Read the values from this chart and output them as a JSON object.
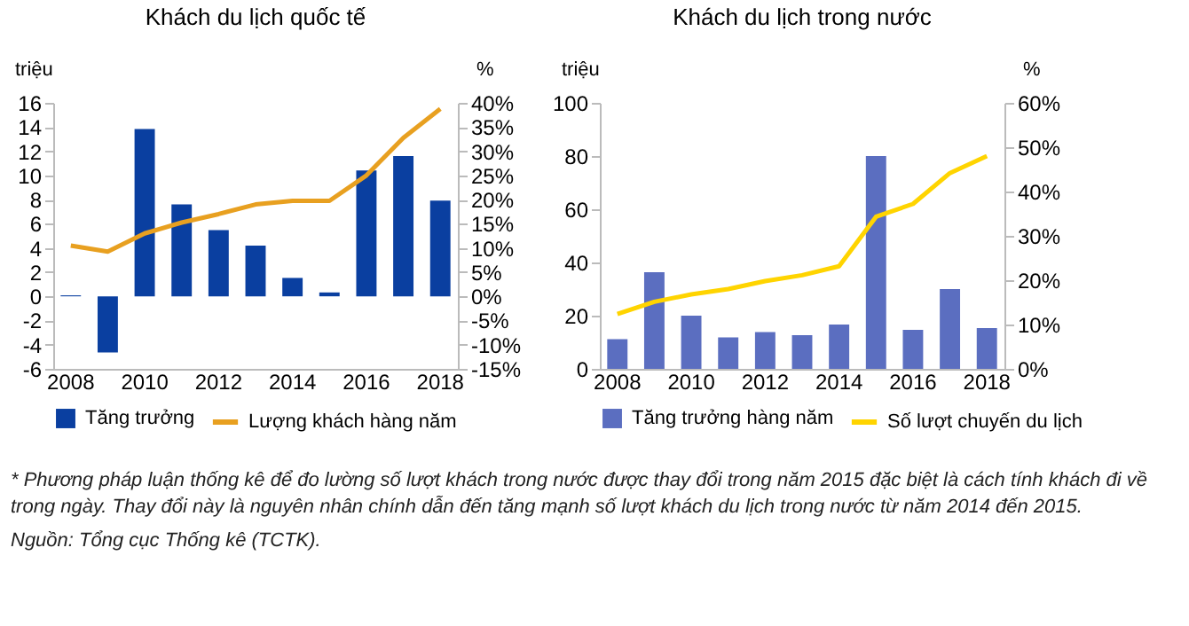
{
  "chart_data": [
    {
      "type": "bar",
      "title": "Khách du lịch quốc tế",
      "ylabel": "triệu",
      "y2label": "%",
      "categories": [
        "2008",
        null,
        "2010",
        null,
        "2012",
        null,
        "2014",
        null,
        "2016",
        null,
        "2018"
      ],
      "series": [
        {
          "name": "Tăng trưởng",
          "type": "bar",
          "axis": "y2",
          "color": "#0a3fa0",
          "values": [
            0.2,
            -11.6,
            34.6,
            19.0,
            13.7,
            10.5,
            3.8,
            0.8,
            26.0,
            29.0,
            19.8
          ]
        },
        {
          "name": "Lượng khách hàng năm",
          "type": "line",
          "axis": "y",
          "color": "#e8a020",
          "values": [
            4.2,
            3.7,
            5.2,
            6.1,
            6.8,
            7.6,
            7.9,
            7.9,
            10.0,
            13.1,
            15.5
          ]
        }
      ],
      "ylim": [
        -6,
        16
      ],
      "yticks": [
        -6,
        -4,
        -2,
        0,
        2,
        4,
        6,
        8,
        10,
        12,
        14,
        16
      ],
      "y2lim": [
        -15,
        40
      ],
      "y2ticks": [
        {
          "value": -15,
          "label": "-15%"
        },
        {
          "value": -10,
          "label": "-10%"
        },
        {
          "value": -5,
          "label": "-5%"
        },
        {
          "value": 0,
          "label": "0%"
        },
        {
          "value": 5,
          "label": "5%"
        },
        {
          "value": 10,
          "label": "10%"
        },
        {
          "value": 15,
          "label": "15%"
        },
        {
          "value": 20,
          "label": "20%"
        },
        {
          "value": 25,
          "label": "25%"
        },
        {
          "value": 30,
          "label": "30%"
        },
        {
          "value": 35,
          "label": "35%"
        },
        {
          "value": 40,
          "label": "40%"
        }
      ],
      "legend": "bottom",
      "grid": false,
      "annotations": [
        "* Phương pháp luận thống kê để đo lường số lượt khách trong nước được thay đổi trong năm 2015 đặc biệt là cách tính khách đi về trong ngày. Thay đổi này là nguyên nhân chính dẫn đến tăng mạnh số lượt khách du lịch trong nước từ năm 2014 đến 2015.",
        "Nguồn: Tổng cục Thống kê (TCTK)."
      ]
    },
    {
      "type": "bar",
      "title": "Khách du lịch trong nước",
      "ylabel": "triệu",
      "y2label": "%",
      "categories": [
        "2008",
        null,
        "2010",
        null,
        "2012",
        null,
        "2014",
        null,
        "2016",
        null,
        "2018"
      ],
      "series": [
        {
          "name": "Tăng trưởng hàng năm",
          "type": "bar",
          "axis": "y2",
          "color": "#5b6ec0",
          "values": [
            6.7,
            21.8,
            12.0,
            7.1,
            8.3,
            7.6,
            10.0,
            48.0,
            8.8,
            18.0,
            9.2
          ]
        },
        {
          "name": "Số lượt chuyến du lịch",
          "type": "line",
          "axis": "y",
          "color": "#ffd400",
          "values": [
            20.6,
            25.2,
            28,
            30,
            33,
            35.2,
            38.6,
            57.2,
            62,
            73.6,
            80
          ]
        }
      ],
      "ylim": [
        0,
        100
      ],
      "yticks": [
        0,
        20,
        40,
        60,
        80,
        100
      ],
      "y2lim": [
        0,
        60
      ],
      "y2ticks": [
        {
          "value": 0,
          "label": "0%"
        },
        {
          "value": 10,
          "label": "10%"
        },
        {
          "value": 20,
          "label": "20%"
        },
        {
          "value": 30,
          "label": "30%"
        },
        {
          "value": 40,
          "label": "40%"
        },
        {
          "value": 50,
          "label": "50%"
        },
        {
          "value": 60,
          "label": "60%"
        }
      ],
      "legend": "bottom",
      "grid": false
    }
  ]
}
